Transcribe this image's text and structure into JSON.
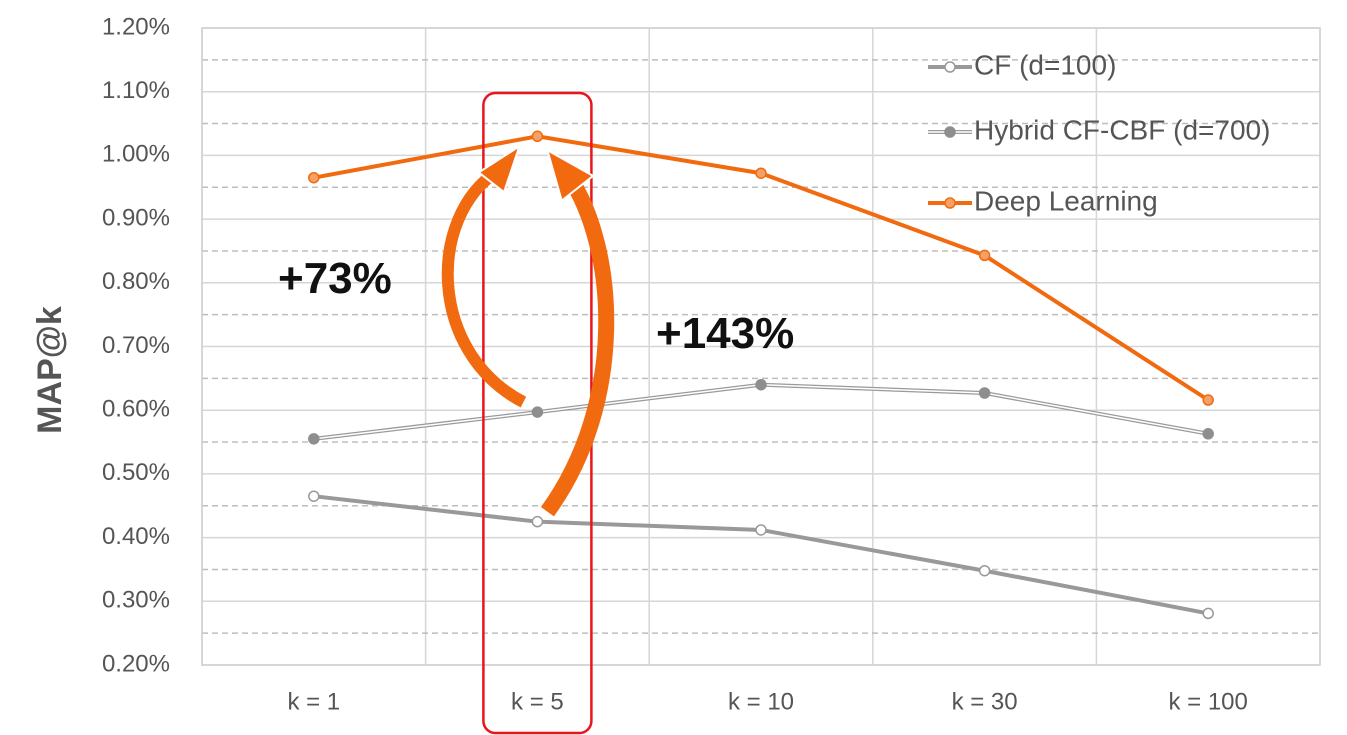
{
  "chart_data": {
    "type": "line",
    "title": "",
    "xlabel": "",
    "ylabel": "MAP@k",
    "categories": [
      "k = 1",
      "k = 5",
      "k = 10",
      "k = 30",
      "k = 100"
    ],
    "yticks": [
      "0.20%",
      "0.30%",
      "0.40%",
      "0.50%",
      "0.60%",
      "0.70%",
      "0.80%",
      "0.90%",
      "1.00%",
      "1.10%",
      "1.20%"
    ],
    "ylim": [
      0.2,
      1.2
    ],
    "grid": true,
    "legend_position": "top-right",
    "series": [
      {
        "name": "CF (d=100)",
        "values": [
          0.465,
          0.425,
          0.412,
          0.348,
          0.281
        ],
        "color": "#999999",
        "marker": "open-circle"
      },
      {
        "name": "Hybrid CF-CBF (d=700)",
        "values": [
          0.555,
          0.597,
          0.64,
          0.627,
          0.563
        ],
        "color": "#999999",
        "marker": "filled-circle"
      },
      {
        "name": "Deep Learning",
        "values": [
          0.965,
          1.03,
          0.972,
          0.843,
          0.616
        ],
        "color": "#f26a0f",
        "marker": "circle"
      }
    ],
    "highlight": {
      "category": "k = 5",
      "color": "#e8161b"
    },
    "annotations": [
      {
        "text": "+73%",
        "arrow_from_series": 1,
        "arrow_to_series": 2,
        "category_index": 1
      },
      {
        "text": "+143%",
        "arrow_from_series": 0,
        "arrow_to_series": 2,
        "category_index": 1
      }
    ]
  }
}
